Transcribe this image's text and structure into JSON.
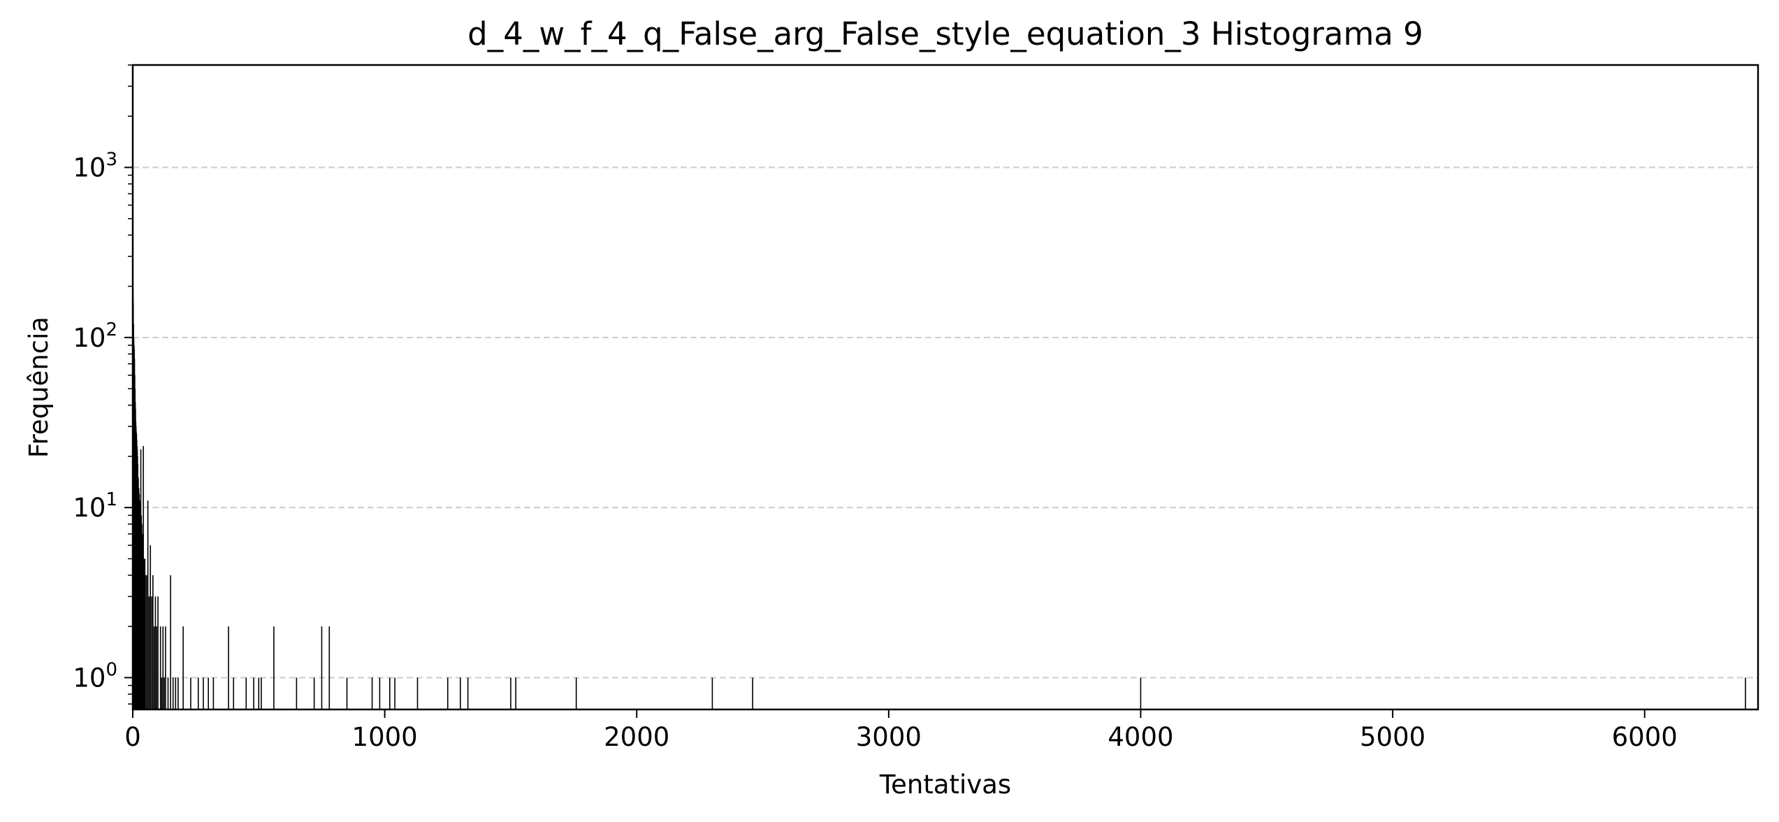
{
  "chart_data": {
    "type": "bar",
    "title": "d_4_w_f_4_q_False_arg_False_style_equation_3 Histograma 9",
    "xlabel": "Tentativas",
    "ylabel": "Frequência",
    "xlim": [
      0,
      6450
    ],
    "ylim": [
      0.65,
      4000
    ],
    "yscale": "log",
    "grid": "y-dashed",
    "xticks": [
      0,
      1000,
      2000,
      3000,
      4000,
      5000,
      6000
    ],
    "yticks": [
      {
        "value": 1,
        "base": "10",
        "exp": "0"
      },
      {
        "value": 10,
        "base": "10",
        "exp": "1"
      },
      {
        "value": 100,
        "base": "10",
        "exp": "2"
      },
      {
        "value": 1000,
        "base": "10",
        "exp": "3"
      }
    ],
    "bar_color": "#000000",
    "grid_color": "#cccccc",
    "bars": [
      {
        "x": 1,
        "y": 190
      },
      {
        "x": 2,
        "y": 160
      },
      {
        "x": 3,
        "y": 120
      },
      {
        "x": 4,
        "y": 100
      },
      {
        "x": 5,
        "y": 90
      },
      {
        "x": 6,
        "y": 85
      },
      {
        "x": 7,
        "y": 75
      },
      {
        "x": 8,
        "y": 60
      },
      {
        "x": 9,
        "y": 50
      },
      {
        "x": 10,
        "y": 42
      },
      {
        "x": 11,
        "y": 38
      },
      {
        "x": 12,
        "y": 32
      },
      {
        "x": 13,
        "y": 30
      },
      {
        "x": 14,
        "y": 28
      },
      {
        "x": 15,
        "y": 27
      },
      {
        "x": 16,
        "y": 25
      },
      {
        "x": 17,
        "y": 23
      },
      {
        "x": 18,
        "y": 22
      },
      {
        "x": 19,
        "y": 20
      },
      {
        "x": 20,
        "y": 18
      },
      {
        "x": 22,
        "y": 15
      },
      {
        "x": 24,
        "y": 13
      },
      {
        "x": 26,
        "y": 12
      },
      {
        "x": 28,
        "y": 11
      },
      {
        "x": 30,
        "y": 10
      },
      {
        "x": 32,
        "y": 22
      },
      {
        "x": 34,
        "y": 9
      },
      {
        "x": 36,
        "y": 8
      },
      {
        "x": 38,
        "y": 7
      },
      {
        "x": 40,
        "y": 6
      },
      {
        "x": 42,
        "y": 23
      },
      {
        "x": 45,
        "y": 5
      },
      {
        "x": 48,
        "y": 5
      },
      {
        "x": 50,
        "y": 4
      },
      {
        "x": 55,
        "y": 4
      },
      {
        "x": 60,
        "y": 11
      },
      {
        "x": 65,
        "y": 3
      },
      {
        "x": 70,
        "y": 6
      },
      {
        "x": 75,
        "y": 3
      },
      {
        "x": 80,
        "y": 4
      },
      {
        "x": 85,
        "y": 2
      },
      {
        "x": 90,
        "y": 3
      },
      {
        "x": 95,
        "y": 2
      },
      {
        "x": 100,
        "y": 3
      },
      {
        "x": 110,
        "y": 2
      },
      {
        "x": 115,
        "y": 1
      },
      {
        "x": 120,
        "y": 2
      },
      {
        "x": 125,
        "y": 1
      },
      {
        "x": 130,
        "y": 2
      },
      {
        "x": 140,
        "y": 1
      },
      {
        "x": 150,
        "y": 4
      },
      {
        "x": 160,
        "y": 1
      },
      {
        "x": 170,
        "y": 1
      },
      {
        "x": 180,
        "y": 1
      },
      {
        "x": 200,
        "y": 2
      },
      {
        "x": 230,
        "y": 1
      },
      {
        "x": 260,
        "y": 1
      },
      {
        "x": 280,
        "y": 1
      },
      {
        "x": 300,
        "y": 1
      },
      {
        "x": 320,
        "y": 1
      },
      {
        "x": 380,
        "y": 2
      },
      {
        "x": 400,
        "y": 1
      },
      {
        "x": 450,
        "y": 1
      },
      {
        "x": 480,
        "y": 1
      },
      {
        "x": 500,
        "y": 1
      },
      {
        "x": 510,
        "y": 1
      },
      {
        "x": 560,
        "y": 2
      },
      {
        "x": 650,
        "y": 1
      },
      {
        "x": 720,
        "y": 1
      },
      {
        "x": 750,
        "y": 2
      },
      {
        "x": 780,
        "y": 2
      },
      {
        "x": 850,
        "y": 1
      },
      {
        "x": 950,
        "y": 1
      },
      {
        "x": 980,
        "y": 1
      },
      {
        "x": 1020,
        "y": 1
      },
      {
        "x": 1040,
        "y": 1
      },
      {
        "x": 1130,
        "y": 1
      },
      {
        "x": 1250,
        "y": 1
      },
      {
        "x": 1300,
        "y": 1
      },
      {
        "x": 1330,
        "y": 1
      },
      {
        "x": 1500,
        "y": 1
      },
      {
        "x": 1520,
        "y": 1
      },
      {
        "x": 1760,
        "y": 1
      },
      {
        "x": 2300,
        "y": 1
      },
      {
        "x": 2460,
        "y": 1
      },
      {
        "x": 4000,
        "y": 1
      },
      {
        "x": 6400,
        "y": 1
      }
    ]
  }
}
